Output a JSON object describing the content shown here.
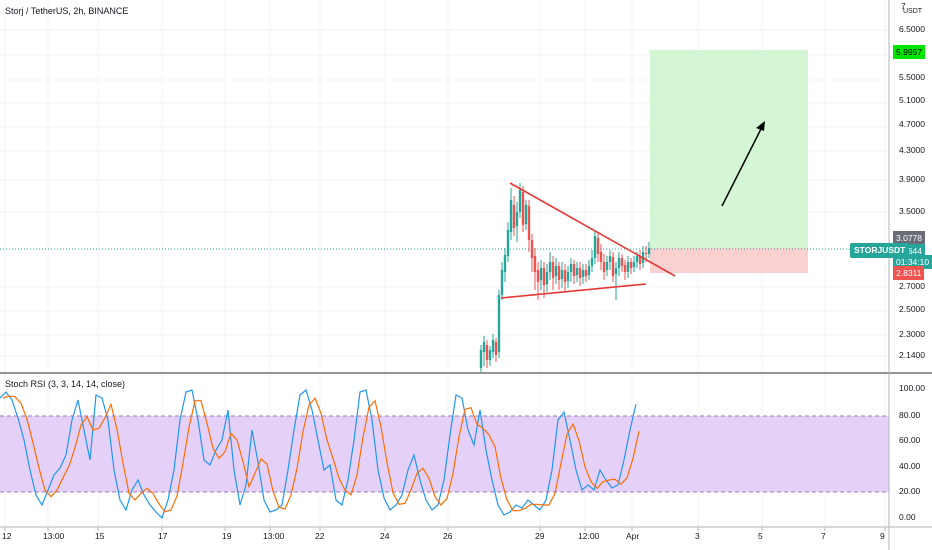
{
  "legend": {
    "symbol_title": "Storj / TetherUS, 2h, BINANCE",
    "indicator_title": "Stoch RSI (3, 3, 14, 14, close)"
  },
  "price_axis": {
    "unit_label": "USDT",
    "ticks": [
      "7",
      "6.5000",
      "6.0000",
      "5.5000",
      "5.1000",
      "4.7000",
      "4.3000",
      "3.9000",
      "3.5000",
      "3.0778",
      "2.7000",
      "2.5000",
      "2.3000",
      "2.1400"
    ],
    "target_price": "5.9957",
    "entry_price": "3.0778",
    "last_price": "3.0644",
    "countdown": "01:34:10",
    "stop_price": "2.8311"
  },
  "symbol_pill": "STORJUSDT",
  "oscillator_axis": {
    "ticks": [
      "100.00",
      "80.00",
      "60.00",
      "40.00",
      "20.00",
      "0.00"
    ]
  },
  "time_axis": {
    "ticks": [
      "12",
      "13:00",
      "15",
      "17",
      "19",
      "13:00",
      "22",
      "24",
      "26",
      "29",
      "12:00",
      "Apr",
      "3",
      "5",
      "7",
      "9"
    ]
  },
  "colors": {
    "up": "#26a69a",
    "down": "#ef5350",
    "target_zone": "#ccf5cc",
    "stop_zone": "#f9cccc",
    "oscillator_band": "#e1c9f7",
    "k_line": "#2196f3",
    "d_line": "#ff6d00",
    "trendline": "#e53935"
  }
}
